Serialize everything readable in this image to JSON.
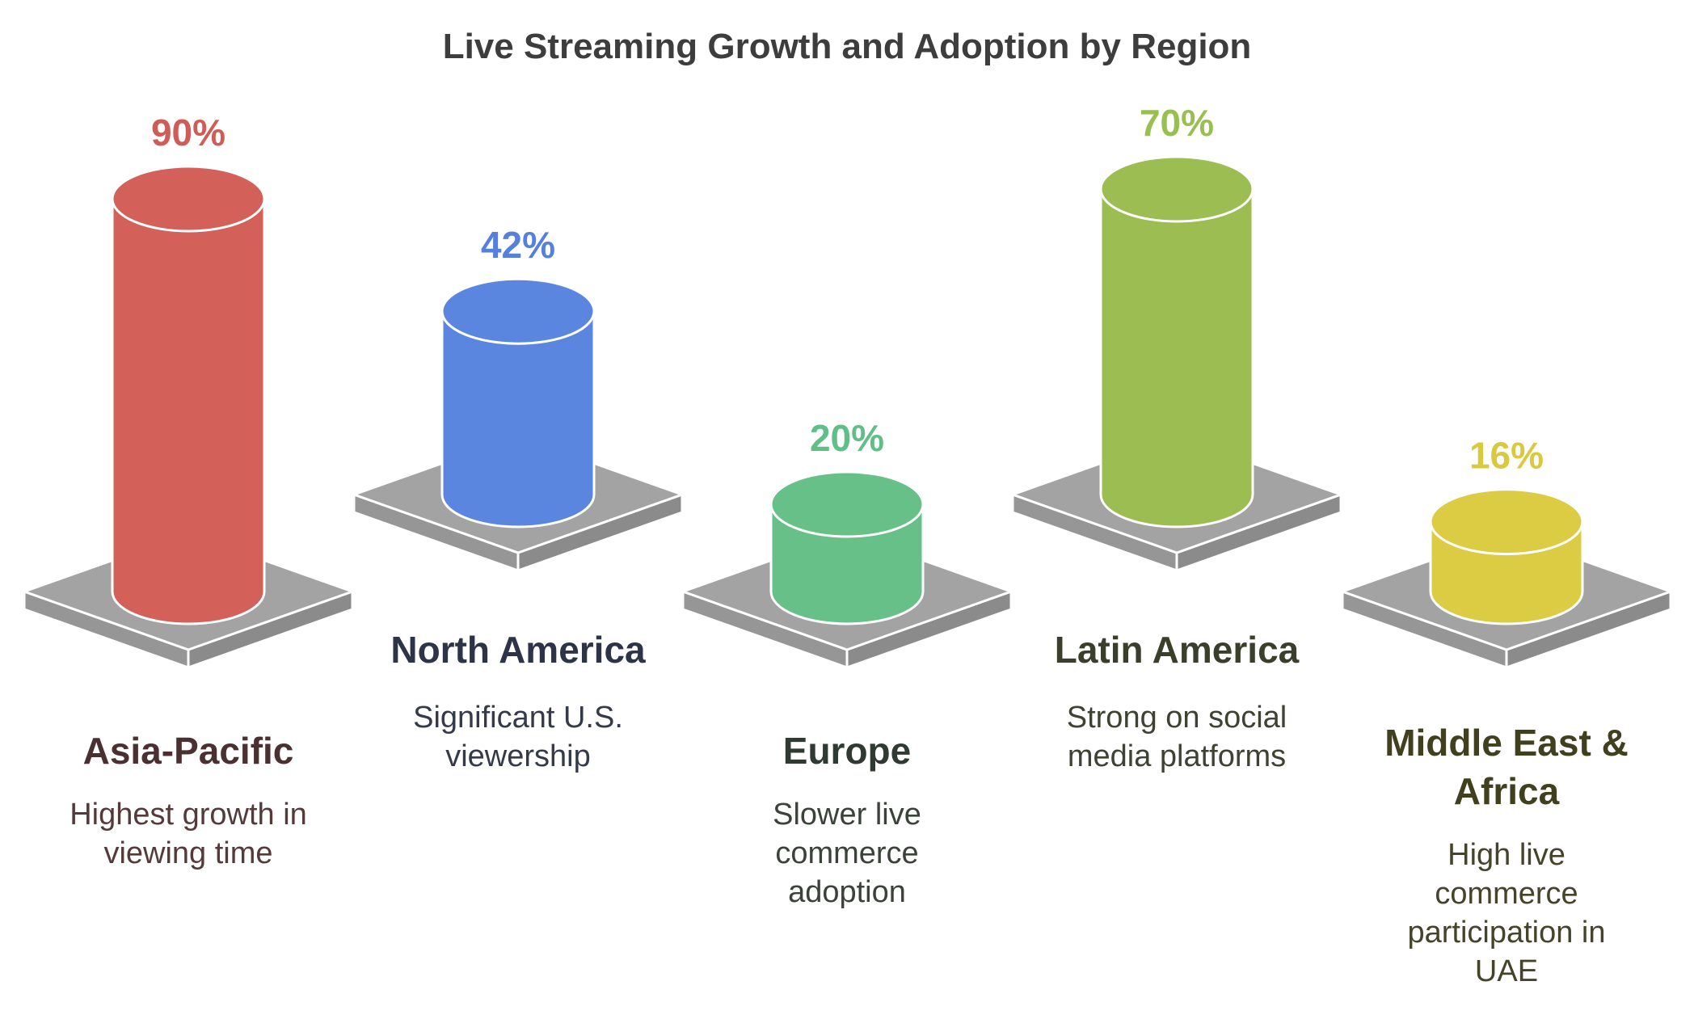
{
  "chart_data": {
    "type": "bar",
    "title": "Live Streaming Growth and Adoption by Region",
    "categories": [
      "Asia-Pacific",
      "North America",
      "Europe",
      "Latin America",
      "Middle East & Africa"
    ],
    "values": [
      90,
      42,
      20,
      70,
      16
    ],
    "value_labels": [
      "90%",
      "42%",
      "20%",
      "70%",
      "16%"
    ],
    "descriptions": [
      [
        "Highest growth in",
        "viewing time"
      ],
      [
        "Significant U.S.",
        "viewership"
      ],
      [
        "Slower live",
        "commerce",
        "adoption"
      ],
      [
        "Strong on social",
        "media platforms"
      ],
      [
        "High live",
        "commerce",
        "participation in",
        "UAE"
      ]
    ],
    "region_label_lines": [
      [
        "Asia-Pacific"
      ],
      [
        "North America"
      ],
      [
        "Europe"
      ],
      [
        "Latin America"
      ],
      [
        "Middle East &",
        "Africa"
      ]
    ],
    "colors": [
      "#d4605a",
      "#5b86e0",
      "#66c088",
      "#9bbd51",
      "#dccc44"
    ],
    "label_colors": [
      "#cf5d57",
      "#5580de",
      "#5fbf86",
      "#98bf4f",
      "#d8c93d"
    ],
    "region_text_colors": [
      "#4a3030",
      "#2e3447",
      "#2f3a32",
      "#3a3f2c",
      "#40401f"
    ],
    "desc_text_colors": [
      "#553a3a",
      "#343a4a",
      "#3a4239",
      "#3e4232",
      "#45432a"
    ],
    "platform_color": "#a3a3a3",
    "xlabel": "",
    "ylabel": "",
    "grid": false,
    "legend": "none"
  }
}
